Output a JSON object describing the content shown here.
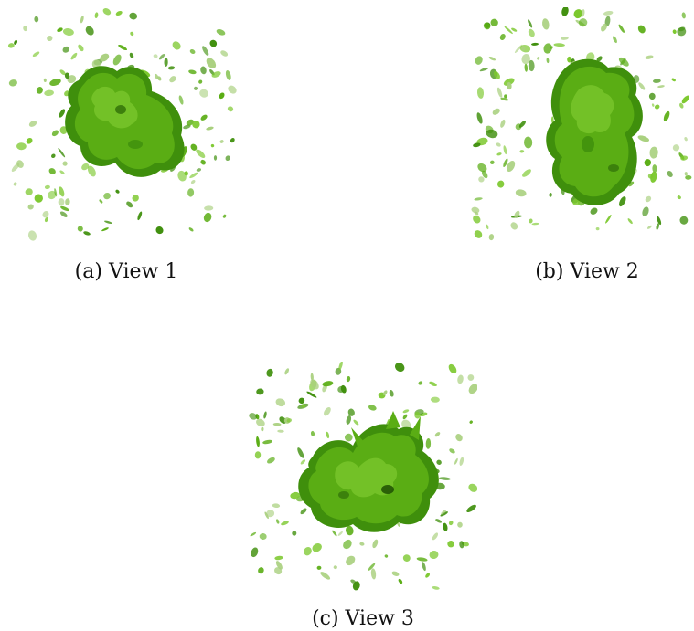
{
  "figures": [
    {
      "caption": "(a) View 1"
    },
    {
      "caption": "(b) View 2"
    },
    {
      "caption": "(c) View 3"
    }
  ],
  "colors": {
    "blob_dark": "#3f8f0c",
    "blob_main": "#5aad14",
    "blob_light": "#7cc82e",
    "speck_faint": "#a9d07e",
    "background": "#ffffff"
  }
}
